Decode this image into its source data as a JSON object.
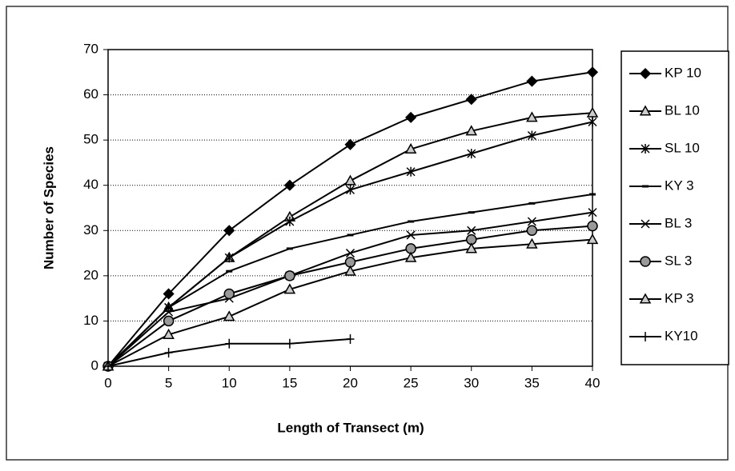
{
  "chart_data": {
    "type": "line",
    "x_label": "Length of Transect (m)",
    "y_label": "Number of Species",
    "x": [
      0,
      5,
      10,
      15,
      20,
      25,
      30,
      35,
      40
    ],
    "xlim": [
      0,
      40
    ],
    "xticks": [
      0,
      5,
      10,
      15,
      20,
      25,
      30,
      35,
      40
    ],
    "ylim": [
      0,
      70
    ],
    "yticks": [
      0,
      10,
      20,
      30,
      40,
      50,
      60,
      70
    ],
    "grid": true,
    "legend": "right",
    "series": [
      {
        "name": "KP 10",
        "color": "#000000",
        "marker": "diamond",
        "values": [
          0,
          16,
          30,
          40,
          49,
          55,
          59,
          63,
          65
        ]
      },
      {
        "name": "BL 10",
        "color": "#000000",
        "marker": "triangle",
        "values": [
          0,
          13,
          24,
          33,
          41,
          48,
          52,
          55,
          56
        ]
      },
      {
        "name": "SL 10",
        "color": "#000000",
        "marker": "asterisk",
        "values": [
          0,
          13,
          24,
          32,
          39,
          43,
          47,
          51,
          54
        ]
      },
      {
        "name": "KY 3",
        "color": "#000000",
        "marker": "dash",
        "values": [
          0,
          13,
          21,
          26,
          29,
          32,
          34,
          36,
          38
        ]
      },
      {
        "name": "BL 3",
        "color": "#000000",
        "marker": "x",
        "values": [
          0,
          12,
          15,
          20,
          25,
          29,
          30,
          32,
          34
        ]
      },
      {
        "name": "SL 3",
        "color": "#000000",
        "marker": "circle",
        "values": [
          0,
          10,
          16,
          20,
          23,
          26,
          28,
          30,
          31
        ]
      },
      {
        "name": "KP 3",
        "color": "#000000",
        "marker": "triangle",
        "values": [
          0,
          7,
          11,
          17,
          21,
          24,
          26,
          27,
          28
        ]
      },
      {
        "name": "KY10",
        "color": "#000000",
        "marker": "plus",
        "values": [
          0,
          3,
          5,
          5,
          6,
          null,
          null,
          null,
          null
        ]
      }
    ]
  }
}
